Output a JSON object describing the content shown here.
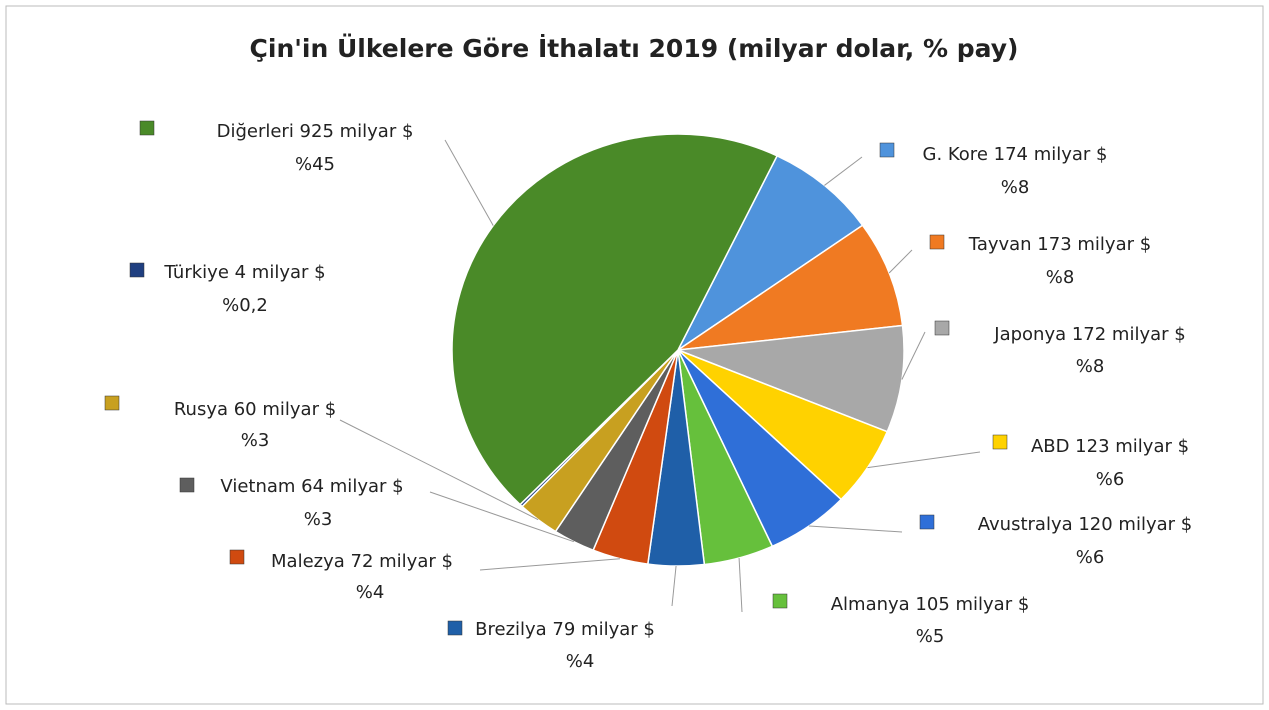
{
  "chart_data": {
    "type": "pie",
    "title": "Çin'in Ülkelere Göre İthalatı 2019 (milyar dolar, % pay)",
    "categories": [
      "G. Kore 174 milyar $",
      "Tayvan 173 milyar $",
      "Japonya 172 milyar $",
      "ABD 123 milyar $",
      "Avustralya 120 milyar $",
      "Almanya 105 milyar $",
      "Brezilya 79 milyar $",
      "Malezya 72 milyar $",
      "Vietnam 64 milyar $",
      "Rusya 60 milyar $",
      "Türkiye 4 milyar $",
      "Diğerleri 925 milyar $"
    ],
    "values": [
      8,
      8,
      8,
      6,
      6,
      5,
      4,
      4,
      3,
      3,
      0.2,
      45
    ],
    "value_labels": [
      "%8",
      "%8",
      "%8",
      "%6",
      "%6",
      "%5",
      "%4",
      "%4",
      "%3",
      "%3",
      "%0,2",
      "%45"
    ],
    "colors": [
      "#4f93dc",
      "#f07a22",
      "#a8a8a8",
      "#ffd200",
      "#2f6fd8",
      "#66c03c",
      "#1f5fa8",
      "#d04a10",
      "#5e5e5e",
      "#c8a020",
      "#1f3f80",
      "#4a8a28"
    ]
  }
}
